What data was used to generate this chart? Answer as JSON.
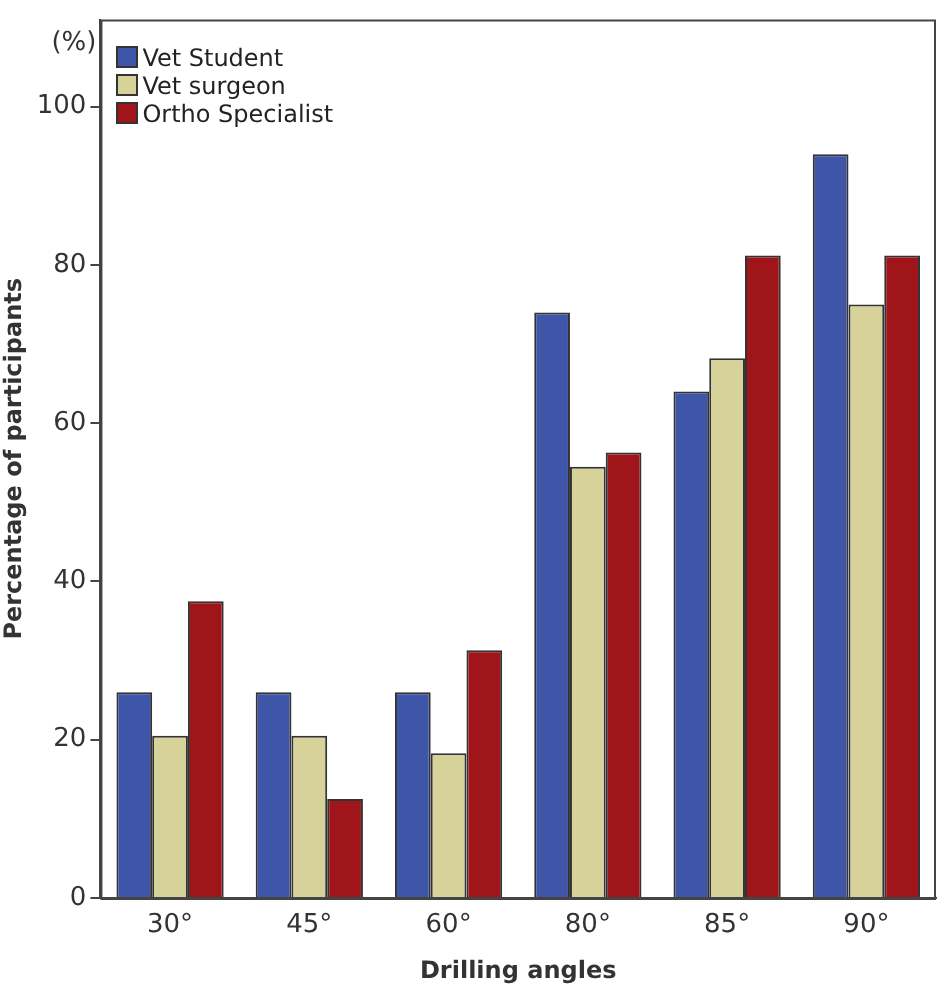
{
  "chart_data": {
    "type": "bar",
    "xlabel": "Drilling angles",
    "ylabel": "Percentage of participants",
    "annotations": [
      "(%)"
    ],
    "categories": [
      "30°",
      "45°",
      "60°",
      "80°",
      "85°",
      "90°"
    ],
    "series": [
      {
        "name": "Vet Student",
        "color": "#3f56a8",
        "values": [
          26,
          26,
          26,
          74,
          64,
          94
        ]
      },
      {
        "name": "Vet surgeon",
        "color": "#d6d29a",
        "values": [
          20.5,
          20.5,
          18.3,
          54.5,
          68.2,
          75
        ]
      },
      {
        "name": "Ortho Specialist",
        "color": "#a01519",
        "values": [
          37.5,
          12.5,
          31.3,
          56.3,
          81.2,
          81.2
        ]
      }
    ],
    "ylim": [
      0,
      111
    ],
    "yticks": [
      0,
      20,
      40,
      60,
      80,
      100
    ],
    "grid": false,
    "legend": "top left"
  }
}
